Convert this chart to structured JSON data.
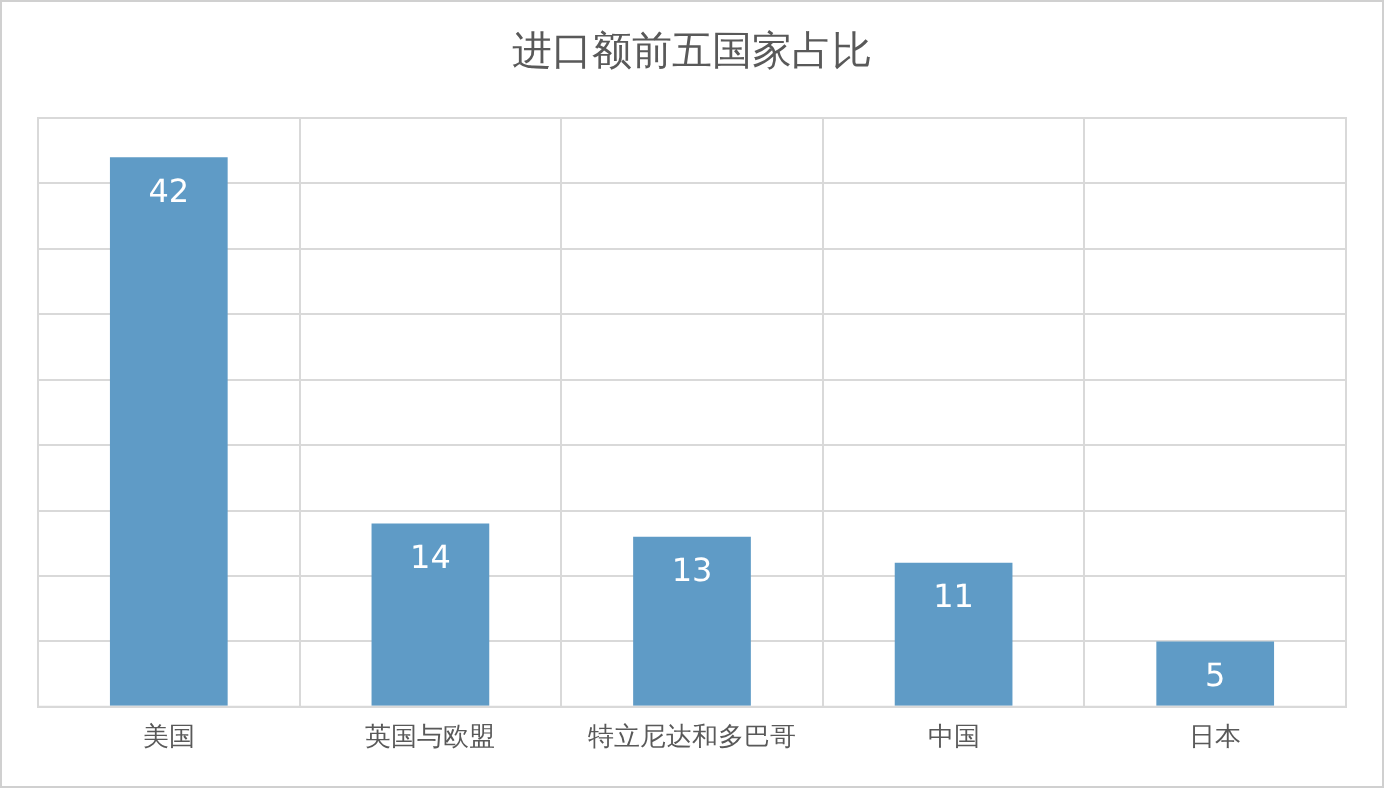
{
  "chart_data": {
    "type": "bar",
    "title": "进口额前五国家占比",
    "categories": [
      "美国",
      "英国与欧盟",
      "特立尼达和多巴哥",
      "中国",
      "日本"
    ],
    "values": [
      42,
      14,
      13,
      11,
      5
    ],
    "color": "#5f9bc6",
    "ylim": [
      0,
      45
    ],
    "yticks": [
      {
        "value": 0,
        "label": null
      },
      {
        "value": 5,
        "label": null
      },
      {
        "value": 10,
        "label": null
      },
      {
        "value": 15,
        "label": null
      },
      {
        "value": 20,
        "label": null
      },
      {
        "value": 25,
        "label": null
      },
      {
        "value": 30,
        "label": null
      },
      {
        "value": 35,
        "label": null
      },
      {
        "value": 40,
        "label": null
      },
      {
        "value": 45,
        "label": null
      }
    ],
    "tick_labels": "x",
    "grid": true,
    "data_labels": true
  }
}
